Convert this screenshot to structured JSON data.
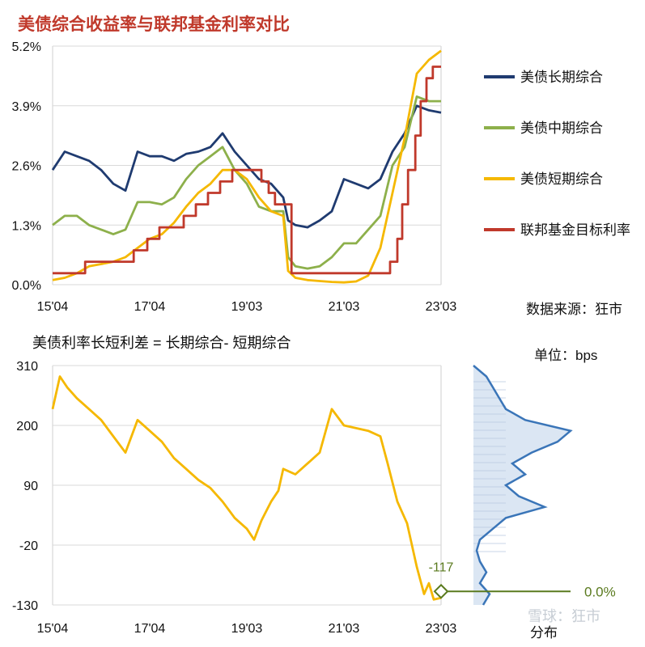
{
  "title": "美债综合收益率与联邦基金利率对比",
  "source_note": "数据来源：狂市",
  "watermark": "雪球：狂市",
  "chart_data": [
    {
      "type": "line",
      "title": "美债综合收益率与联邦基金利率对比",
      "x_ticks": [
        "15'04",
        "17'04",
        "19'03",
        "21'03",
        "23'03"
      ],
      "x_range": [
        2015.25,
        2023.25
      ],
      "ylim": [
        0,
        5.2
      ],
      "y_ticks": [
        "0.0%",
        "1.3%",
        "2.6%",
        "3.9%",
        "5.2%"
      ],
      "legend_position": "right",
      "series": [
        {
          "name": "美债长期综合",
          "color": "#1f3b70",
          "points": [
            [
              2015.25,
              2.5
            ],
            [
              2015.5,
              2.9
            ],
            [
              2015.75,
              2.8
            ],
            [
              2016.0,
              2.7
            ],
            [
              2016.25,
              2.5
            ],
            [
              2016.5,
              2.2
            ],
            [
              2016.75,
              2.05
            ],
            [
              2017.0,
              2.9
            ],
            [
              2017.25,
              2.8
            ],
            [
              2017.5,
              2.8
            ],
            [
              2017.75,
              2.7
            ],
            [
              2018.0,
              2.85
            ],
            [
              2018.25,
              2.9
            ],
            [
              2018.5,
              3.0
            ],
            [
              2018.75,
              3.3
            ],
            [
              2019.0,
              2.9
            ],
            [
              2019.25,
              2.6
            ],
            [
              2019.5,
              2.3
            ],
            [
              2019.75,
              2.2
            ],
            [
              2020.0,
              1.9
            ],
            [
              2020.1,
              1.4
            ],
            [
              2020.25,
              1.3
            ],
            [
              2020.5,
              1.25
            ],
            [
              2020.75,
              1.4
            ],
            [
              2021.0,
              1.6
            ],
            [
              2021.25,
              2.3
            ],
            [
              2021.5,
              2.2
            ],
            [
              2021.75,
              2.1
            ],
            [
              2022.0,
              2.3
            ],
            [
              2022.25,
              2.9
            ],
            [
              2022.5,
              3.3
            ],
            [
              2022.75,
              3.9
            ],
            [
              2023.0,
              3.8
            ],
            [
              2023.25,
              3.75
            ]
          ]
        },
        {
          "name": "美债中期综合",
          "color": "#8db04b",
          "points": [
            [
              2015.25,
              1.3
            ],
            [
              2015.5,
              1.5
            ],
            [
              2015.75,
              1.5
            ],
            [
              2016.0,
              1.3
            ],
            [
              2016.25,
              1.2
            ],
            [
              2016.5,
              1.1
            ],
            [
              2016.75,
              1.2
            ],
            [
              2017.0,
              1.8
            ],
            [
              2017.25,
              1.8
            ],
            [
              2017.5,
              1.75
            ],
            [
              2017.75,
              1.9
            ],
            [
              2018.0,
              2.3
            ],
            [
              2018.25,
              2.6
            ],
            [
              2018.5,
              2.8
            ],
            [
              2018.75,
              3.0
            ],
            [
              2019.0,
              2.5
            ],
            [
              2019.25,
              2.2
            ],
            [
              2019.5,
              1.7
            ],
            [
              2019.75,
              1.6
            ],
            [
              2020.0,
              1.6
            ],
            [
              2020.1,
              0.6
            ],
            [
              2020.25,
              0.4
            ],
            [
              2020.5,
              0.35
            ],
            [
              2020.75,
              0.4
            ],
            [
              2021.0,
              0.6
            ],
            [
              2021.25,
              0.9
            ],
            [
              2021.5,
              0.9
            ],
            [
              2021.75,
              1.2
            ],
            [
              2022.0,
              1.5
            ],
            [
              2022.25,
              2.6
            ],
            [
              2022.5,
              3.0
            ],
            [
              2022.75,
              4.1
            ],
            [
              2023.0,
              4.0
            ],
            [
              2023.25,
              4.0
            ]
          ]
        },
        {
          "name": "美债短期综合",
          "color": "#f5b800",
          "points": [
            [
              2015.25,
              0.1
            ],
            [
              2015.5,
              0.15
            ],
            [
              2015.75,
              0.25
            ],
            [
              2016.0,
              0.4
            ],
            [
              2016.25,
              0.45
            ],
            [
              2016.5,
              0.5
            ],
            [
              2016.75,
              0.6
            ],
            [
              2017.0,
              0.8
            ],
            [
              2017.25,
              1.0
            ],
            [
              2017.5,
              1.1
            ],
            [
              2017.75,
              1.35
            ],
            [
              2018.0,
              1.7
            ],
            [
              2018.25,
              2.0
            ],
            [
              2018.5,
              2.2
            ],
            [
              2018.75,
              2.5
            ],
            [
              2019.0,
              2.5
            ],
            [
              2019.25,
              2.3
            ],
            [
              2019.5,
              1.9
            ],
            [
              2019.75,
              1.6
            ],
            [
              2020.0,
              1.5
            ],
            [
              2020.1,
              0.3
            ],
            [
              2020.25,
              0.15
            ],
            [
              2020.5,
              0.1
            ],
            [
              2020.75,
              0.08
            ],
            [
              2021.0,
              0.06
            ],
            [
              2021.25,
              0.05
            ],
            [
              2021.5,
              0.07
            ],
            [
              2021.75,
              0.2
            ],
            [
              2022.0,
              0.8
            ],
            [
              2022.25,
              2.0
            ],
            [
              2022.5,
              3.2
            ],
            [
              2022.75,
              4.6
            ],
            [
              2023.0,
              4.9
            ],
            [
              2023.25,
              5.1
            ]
          ]
        },
        {
          "name": "联邦基金目标利率",
          "color": "#c0392b",
          "points": [
            [
              2015.25,
              0.25
            ],
            [
              2015.92,
              0.25
            ],
            [
              2015.92,
              0.5
            ],
            [
              2016.92,
              0.5
            ],
            [
              2016.92,
              0.75
            ],
            [
              2017.2,
              0.75
            ],
            [
              2017.2,
              1.0
            ],
            [
              2017.45,
              1.0
            ],
            [
              2017.45,
              1.25
            ],
            [
              2017.95,
              1.25
            ],
            [
              2017.95,
              1.5
            ],
            [
              2018.2,
              1.5
            ],
            [
              2018.2,
              1.75
            ],
            [
              2018.45,
              1.75
            ],
            [
              2018.45,
              2.0
            ],
            [
              2018.7,
              2.0
            ],
            [
              2018.7,
              2.25
            ],
            [
              2018.95,
              2.25
            ],
            [
              2018.95,
              2.5
            ],
            [
              2019.55,
              2.5
            ],
            [
              2019.55,
              2.25
            ],
            [
              2019.7,
              2.25
            ],
            [
              2019.7,
              2.0
            ],
            [
              2019.83,
              2.0
            ],
            [
              2019.83,
              1.75
            ],
            [
              2020.17,
              1.75
            ],
            [
              2020.17,
              0.25
            ],
            [
              2022.2,
              0.25
            ],
            [
              2022.2,
              0.5
            ],
            [
              2022.35,
              0.5
            ],
            [
              2022.35,
              1.0
            ],
            [
              2022.45,
              1.0
            ],
            [
              2022.45,
              1.75
            ],
            [
              2022.57,
              1.75
            ],
            [
              2022.57,
              2.5
            ],
            [
              2022.72,
              2.5
            ],
            [
              2022.72,
              3.25
            ],
            [
              2022.83,
              3.25
            ],
            [
              2022.83,
              4.0
            ],
            [
              2022.95,
              4.0
            ],
            [
              2022.95,
              4.5
            ],
            [
              2023.08,
              4.5
            ],
            [
              2023.08,
              4.75
            ],
            [
              2023.25,
              4.75
            ]
          ]
        }
      ]
    },
    {
      "type": "line",
      "title": "美债利率长短利差 = 长期综合- 短期综合",
      "unit_note": "单位：bps",
      "x_ticks": [
        "15'04",
        "17'04",
        "19'03",
        "21'03",
        "23'03"
      ],
      "x_range": [
        2015.25,
        2023.25
      ],
      "ylim": [
        -130,
        310
      ],
      "y_ticks": [
        "-130",
        "-20",
        "90",
        "200",
        "310"
      ],
      "last_value_label": "-117",
      "percentile_label": "0.0%",
      "distribution_label": "分布",
      "series": [
        {
          "name": "长短利差",
          "color": "#f5b800",
          "points": [
            [
              2015.25,
              230
            ],
            [
              2015.4,
              290
            ],
            [
              2015.55,
              270
            ],
            [
              2015.75,
              250
            ],
            [
              2016.0,
              230
            ],
            [
              2016.25,
              210
            ],
            [
              2016.5,
              180
            ],
            [
              2016.75,
              150
            ],
            [
              2017.0,
              210
            ],
            [
              2017.25,
              190
            ],
            [
              2017.5,
              170
            ],
            [
              2017.75,
              140
            ],
            [
              2018.0,
              120
            ],
            [
              2018.25,
              100
            ],
            [
              2018.5,
              85
            ],
            [
              2018.75,
              60
            ],
            [
              2019.0,
              30
            ],
            [
              2019.25,
              10
            ],
            [
              2019.4,
              -10
            ],
            [
              2019.55,
              25
            ],
            [
              2019.75,
              60
            ],
            [
              2019.9,
              80
            ],
            [
              2020.0,
              120
            ],
            [
              2020.25,
              110
            ],
            [
              2020.5,
              130
            ],
            [
              2020.75,
              150
            ],
            [
              2021.0,
              230
            ],
            [
              2021.25,
              200
            ],
            [
              2021.5,
              195
            ],
            [
              2021.75,
              190
            ],
            [
              2022.0,
              180
            ],
            [
              2022.15,
              130
            ],
            [
              2022.35,
              60
            ],
            [
              2022.55,
              20
            ],
            [
              2022.75,
              -60
            ],
            [
              2022.9,
              -110
            ],
            [
              2023.0,
              -90
            ],
            [
              2023.1,
              -120
            ],
            [
              2023.25,
              -117
            ]
          ]
        }
      ],
      "distribution": [
        [
          -130,
          3
        ],
        [
          -110,
          5
        ],
        [
          -90,
          2
        ],
        [
          -70,
          4
        ],
        [
          -50,
          2
        ],
        [
          -30,
          1
        ],
        [
          -10,
          2
        ],
        [
          10,
          6
        ],
        [
          30,
          10
        ],
        [
          50,
          22
        ],
        [
          70,
          14
        ],
        [
          90,
          10
        ],
        [
          110,
          16
        ],
        [
          130,
          12
        ],
        [
          150,
          18
        ],
        [
          170,
          26
        ],
        [
          190,
          30
        ],
        [
          210,
          16
        ],
        [
          230,
          10
        ],
        [
          250,
          8
        ],
        [
          270,
          6
        ],
        [
          290,
          4
        ],
        [
          310,
          0
        ]
      ]
    }
  ]
}
